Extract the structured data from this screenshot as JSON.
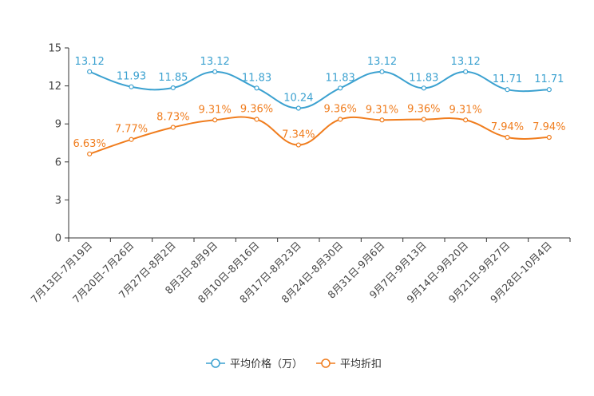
{
  "chart_data": {
    "type": "line",
    "categories": [
      "7月13日-7月19日",
      "7月20日-7月26日",
      "7月27日-8月2日",
      "8月3日-8月9日",
      "8月10日-8月16日",
      "8月17日-8月23日",
      "8月24日-8月30日",
      "8月31日-9月6日",
      "9月7日-9月13日",
      "9月14日-9月20日",
      "9月21日-9月27日",
      "9月28日-10月4日"
    ],
    "ylim": [
      0,
      15
    ],
    "yticks": [
      0,
      3,
      6,
      9,
      12,
      15
    ],
    "series": [
      {
        "name": "平均价格（万）",
        "color": "#3ba1d0",
        "values": [
          13.12,
          11.93,
          11.85,
          13.12,
          11.83,
          10.24,
          11.83,
          13.12,
          11.83,
          13.12,
          11.71,
          11.71
        ],
        "labels": [
          "13.12",
          "11.93",
          "11.85",
          "13.12",
          "11.83",
          "10.24",
          "11.83",
          "13.12",
          "11.83",
          "13.12",
          "11.71",
          "11.71"
        ]
      },
      {
        "name": "平均折扣",
        "color": "#f07d1e",
        "values": [
          6.63,
          7.77,
          8.73,
          9.31,
          9.36,
          7.34,
          9.36,
          9.31,
          9.36,
          9.31,
          7.94,
          7.94
        ],
        "labels": [
          "6.63%",
          "7.77%",
          "8.73%",
          "9.31%",
          "9.36%",
          "7.34%",
          "9.36%",
          "9.31%",
          "9.36%",
          "9.31%",
          "7.94%",
          "7.94%"
        ]
      }
    ],
    "legend": "bottom-center",
    "grid": false
  }
}
